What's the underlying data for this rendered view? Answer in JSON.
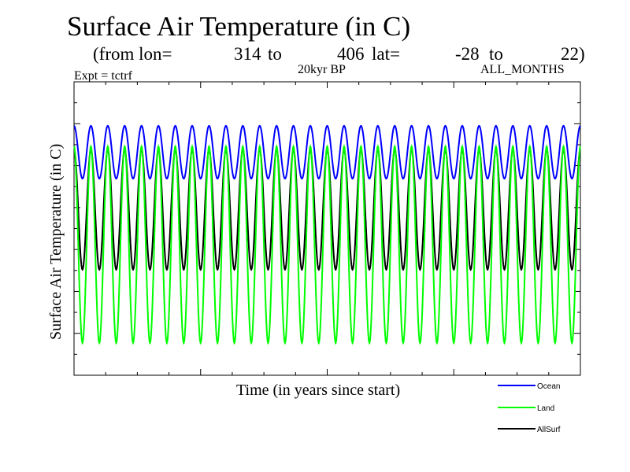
{
  "chart_data": {
    "type": "line",
    "title": "Surface Air Temperature (in C)",
    "subtitle": {
      "from_lon_label": "(from lon=",
      "lon_start": "314",
      "to_label_1": "to",
      "lon_end": "406",
      "lat_label": "lat=",
      "lat_start": "-28",
      "to_label_2": "to",
      "lat_end": "22)"
    },
    "experiment": "Expt = tctrf",
    "period": "20kyr BP",
    "months": "ALL_MONTHS",
    "xlabel": "Time (in years since start)",
    "ylabel": "Surface Air Temperature (in C)",
    "grid": false,
    "legend_position": "bottom-right",
    "cycles": 30,
    "samples_per_cycle": 12,
    "ylim": [
      0,
      1
    ],
    "series": [
      {
        "name": "Ocean",
        "color": "#0000ff",
        "low": 0.67,
        "high": 0.85,
        "phase": 0.0
      },
      {
        "name": "Land",
        "color": "#00ff00",
        "low": 0.11,
        "high": 0.78,
        "phase": 0.0
      },
      {
        "name": "AllSurf",
        "color": "#000000",
        "low": 0.36,
        "high": 0.77,
        "phase": 0.0
      }
    ]
  }
}
